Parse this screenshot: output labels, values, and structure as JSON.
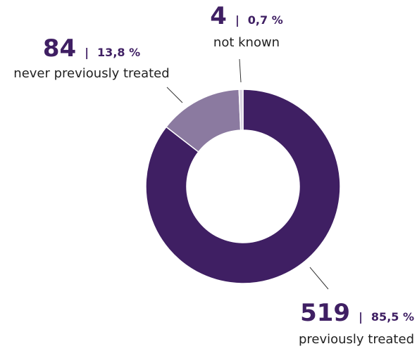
{
  "chart_data": {
    "type": "donut",
    "categories": [
      "previously treated",
      "never previously treated",
      "not known"
    ],
    "values": [
      519,
      84,
      4
    ],
    "percentages": [
      {
        "value": 85.5,
        "label": "85,5 %"
      },
      {
        "value": 13.8,
        "label": "13,8 %"
      },
      {
        "value": 0.7,
        "label": "0,7 %"
      }
    ],
    "separator": "|",
    "colors": [
      "#3f1f63",
      "#8b7aa0",
      "#d9d2e2"
    ]
  }
}
